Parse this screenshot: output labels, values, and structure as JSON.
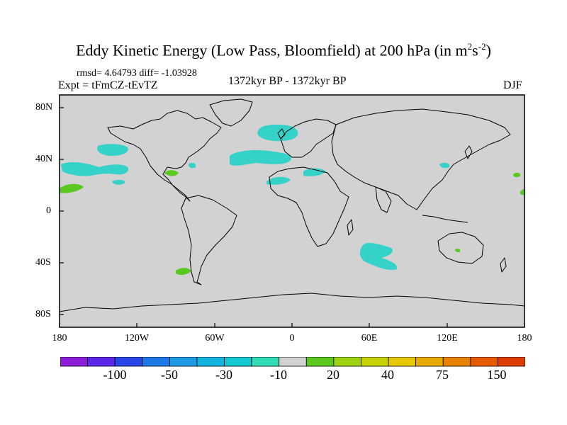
{
  "title": {
    "main": "Eddy Kinetic Energy (Low Pass, Bloomfield) at 200 hPa (in m",
    "sup1": "2",
    "unit_s": "s",
    "sup2": "-2",
    "close": ")"
  },
  "stats": "rmsd= 4.64793 diff= -1.03928",
  "expt": "Expt = tFmCZ-tEvTZ",
  "period": "1372kyr BP - 1372kyr BP",
  "season": "DJF",
  "lat_labels": [
    "80N",
    "40N",
    "0",
    "40S",
    "80S"
  ],
  "lon_labels": [
    "180",
    "120W",
    "60W",
    "0",
    "60E",
    "120E",
    "180"
  ],
  "colors": {
    "land_sea_background": "#d2d2d2",
    "negative_anomaly": "#34d2c8",
    "positive_anomaly": "#5ac81e",
    "coastline": "#000000"
  },
  "colorbar": {
    "colors": [
      "#8c1eda",
      "#5a28e6",
      "#2846e6",
      "#1e78e6",
      "#1e9ae6",
      "#14b4e0",
      "#14c8d2",
      "#32dcb4",
      "#d2d2d2",
      "#5ac81e",
      "#a0d214",
      "#c8d200",
      "#e6c800",
      "#e6aa00",
      "#e68200",
      "#e65a00",
      "#dc3c00"
    ],
    "labels": [
      "-100",
      "-50",
      "-30",
      "-10",
      "20",
      "40",
      "75",
      "150"
    ]
  }
}
